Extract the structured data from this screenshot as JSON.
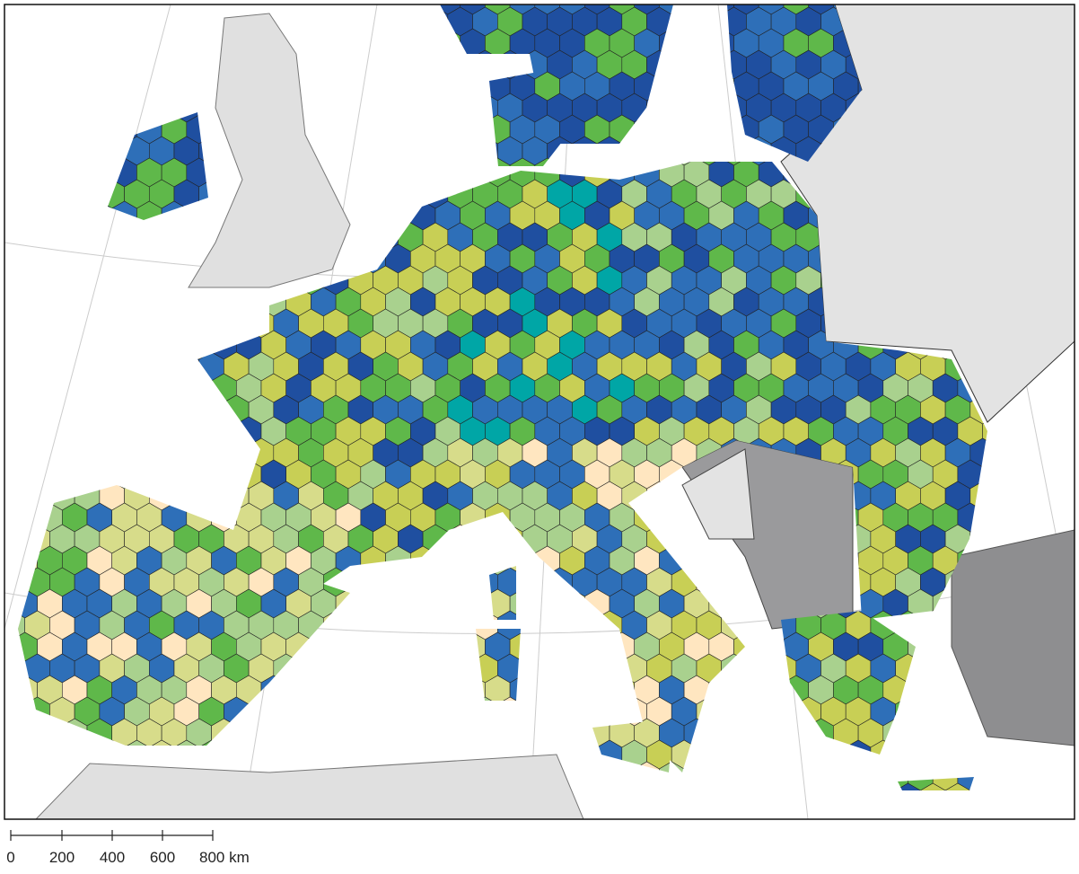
{
  "scale_bar": {
    "labels": [
      "0",
      "200",
      "400",
      "600",
      "800 km"
    ]
  }
}
